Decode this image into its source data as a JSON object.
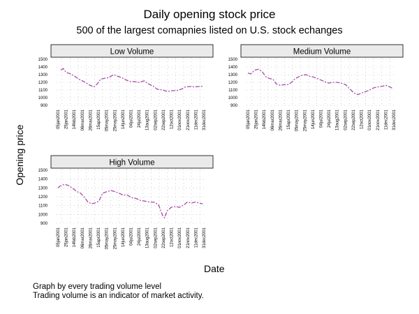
{
  "title": "Daily opening stock price",
  "subtitle": "500 of the largest comapnies listed on U.S. stock echanges",
  "ylabel": "Opening price",
  "xlabel": "Date",
  "notes": [
    "Graph by every trading volume level",
    "Trading volume is an indicator of market activity."
  ],
  "colors": {
    "line": "#a64ca6",
    "strip": "#eaeaea",
    "grid": "#b0b0b0"
  },
  "chart_data": [
    {
      "type": "line",
      "title": "Low Volume",
      "xlabel": "",
      "ylabel": "",
      "ylim": [
        900,
        1500
      ],
      "yticks": [
        900,
        1000,
        1100,
        1200,
        1300,
        1400,
        1500
      ],
      "xlim": [
        "2001-01-05",
        "2001-12-31"
      ],
      "xtick_labels": [
        "05jan2001",
        "25jan2001",
        "14feb2001",
        "06mar2001",
        "26mar2001",
        "15apr2001",
        "05may2001",
        "25may2001",
        "14jun2001",
        "04jul2001",
        "24jul2001",
        "13aug2001",
        "02sep2001",
        "22sep2001",
        "12oct2001",
        "01nov2001",
        "21nov2001",
        "11dec2001",
        "31dec2001"
      ],
      "grid": true,
      "series": [
        {
          "x": [
            "2001-01-12",
            "2001-01-18",
            "2001-01-25",
            "2001-02-05",
            "2001-02-15",
            "2001-02-26",
            "2001-03-08",
            "2001-03-19",
            "2001-03-26",
            "2001-04-04",
            "2001-04-12",
            "2001-04-20",
            "2001-05-01",
            "2001-05-10",
            "2001-05-22",
            "2001-06-01",
            "2001-06-12",
            "2001-06-22",
            "2001-07-03",
            "2001-07-13",
            "2001-07-25",
            "2001-08-06",
            "2001-08-16",
            "2001-08-28",
            "2001-09-07",
            "2001-09-21",
            "2001-10-02",
            "2001-10-12",
            "2001-10-25",
            "2001-11-05",
            "2001-11-15",
            "2001-11-27",
            "2001-12-07",
            "2001-12-18",
            "2001-12-28"
          ],
          "values": [
            1360,
            1380,
            1330,
            1310,
            1280,
            1240,
            1215,
            1180,
            1160,
            1140,
            1180,
            1240,
            1255,
            1260,
            1300,
            1280,
            1260,
            1230,
            1210,
            1210,
            1200,
            1220,
            1180,
            1150,
            1110,
            1100,
            1080,
            1090,
            1095,
            1110,
            1140,
            1145,
            1140,
            1145,
            1150
          ]
        }
      ]
    },
    {
      "type": "line",
      "title": "Medium Volume",
      "xlabel": "",
      "ylabel": "",
      "ylim": [
        900,
        1500
      ],
      "yticks": [
        900,
        1000,
        1100,
        1200,
        1300,
        1400,
        1500
      ],
      "xlim": [
        "2001-01-05",
        "2001-12-31"
      ],
      "xtick_labels": [
        "05jan2001",
        "25jan2001",
        "14feb2001",
        "06mar2001",
        "26mar2001",
        "15apr2001",
        "05may2001",
        "25may2001",
        "14jun2001",
        "04jul2001",
        "24jul2001",
        "13aug2001",
        "02sep2001",
        "22sep2001",
        "12oct2001",
        "01nov2001",
        "21nov2001",
        "11dec2001",
        "31dec2001"
      ],
      "grid": true,
      "series": [
        {
          "x": [
            "2001-01-05",
            "2001-01-12",
            "2001-01-22",
            "2001-01-31",
            "2001-02-09",
            "2001-02-19",
            "2001-02-27",
            "2001-03-08",
            "2001-03-16",
            "2001-03-26",
            "2001-04-04",
            "2001-04-13",
            "2001-04-20",
            "2001-04-30",
            "2001-05-09",
            "2001-05-18",
            "2001-05-28",
            "2001-06-06",
            "2001-06-15",
            "2001-06-25",
            "2001-07-04",
            "2001-07-13",
            "2001-07-23",
            "2001-08-02",
            "2001-08-13",
            "2001-08-23",
            "2001-09-03",
            "2001-09-14",
            "2001-09-24",
            "2001-10-03",
            "2001-10-12",
            "2001-10-23",
            "2001-11-01",
            "2001-11-12",
            "2001-11-21",
            "2001-12-03",
            "2001-12-12",
            "2001-12-21",
            "2001-12-28"
          ],
          "values": [
            1320,
            1310,
            1360,
            1370,
            1340,
            1270,
            1250,
            1240,
            1180,
            1160,
            1170,
            1170,
            1190,
            1240,
            1270,
            1290,
            1300,
            1280,
            1270,
            1250,
            1230,
            1210,
            1190,
            1200,
            1200,
            1190,
            1170,
            1110,
            1060,
            1040,
            1060,
            1080,
            1100,
            1130,
            1140,
            1150,
            1160,
            1140,
            1120
          ]
        }
      ]
    },
    {
      "type": "line",
      "title": "High Volume",
      "xlabel": "",
      "ylabel": "",
      "ylim": [
        900,
        1500
      ],
      "yticks": [
        900,
        1000,
        1100,
        1200,
        1300,
        1400,
        1500
      ],
      "xlim": [
        "2001-01-05",
        "2001-12-31"
      ],
      "xtick_labels": [
        "05jan2001",
        "25jan2001",
        "14feb2001",
        "06mar2001",
        "26mar2001",
        "15apr2001",
        "05may2001",
        "25may2001",
        "14jun2001",
        "04jul2001",
        "24jul2001",
        "13aug2001",
        "02sep2001",
        "22sep2001",
        "12oct2001",
        "01nov2001",
        "21nov2001",
        "11dec2001",
        "31dec2001"
      ],
      "grid": true,
      "series": [
        {
          "x": [
            "2001-01-05",
            "2001-01-10",
            "2001-01-20",
            "2001-01-30",
            "2001-02-09",
            "2001-02-20",
            "2001-03-02",
            "2001-03-12",
            "2001-03-20",
            "2001-03-29",
            "2001-04-06",
            "2001-04-16",
            "2001-04-25",
            "2001-05-07",
            "2001-05-16",
            "2001-05-24",
            "2001-06-05",
            "2001-06-14",
            "2001-06-25",
            "2001-07-05",
            "2001-07-17",
            "2001-07-27",
            "2001-08-08",
            "2001-08-20",
            "2001-08-30",
            "2001-09-10",
            "2001-09-20",
            "2001-09-25",
            "2001-10-01",
            "2001-10-11",
            "2001-10-22",
            "2001-11-01",
            "2001-11-12",
            "2001-11-20",
            "2001-11-30",
            "2001-12-10",
            "2001-12-19",
            "2001-12-28"
          ],
          "values": [
            1300,
            1320,
            1340,
            1330,
            1300,
            1260,
            1240,
            1190,
            1140,
            1120,
            1130,
            1150,
            1240,
            1260,
            1270,
            1260,
            1240,
            1220,
            1220,
            1190,
            1180,
            1160,
            1150,
            1140,
            1140,
            1110,
            990,
            960,
            1040,
            1080,
            1090,
            1080,
            1110,
            1140,
            1130,
            1140,
            1130,
            1120
          ]
        }
      ]
    }
  ]
}
